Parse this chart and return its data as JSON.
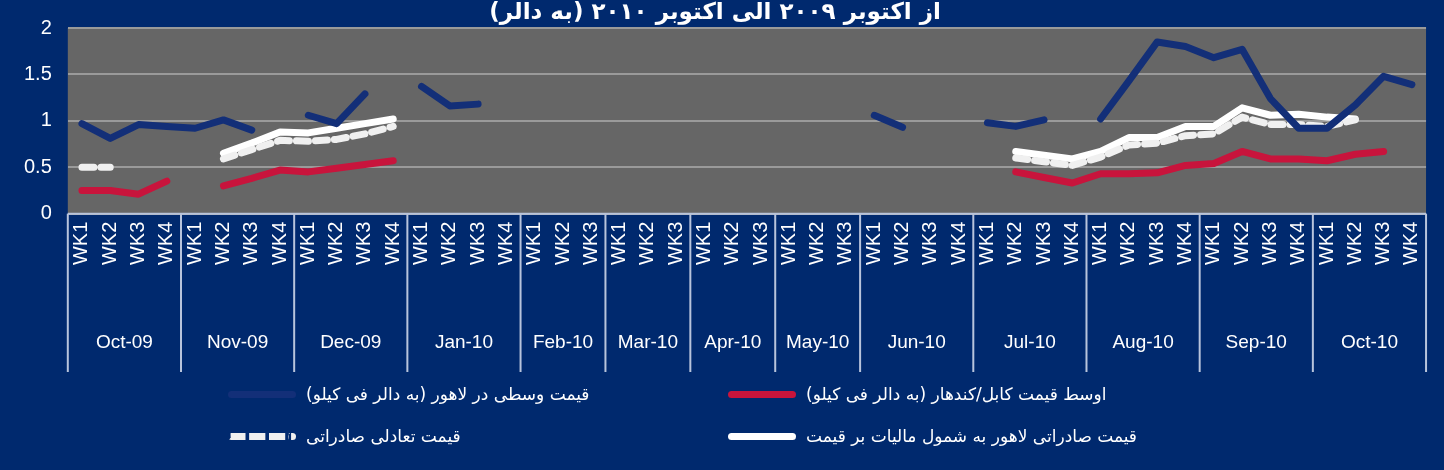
{
  "chart_data": {
    "type": "line",
    "title": "از اکتوبر ۲۰۰۹ الی اکتوبر ۲۰۱۰ (به دالر)",
    "categories": [
      "WK1",
      "WK2",
      "WK3",
      "WK4",
      "WK1",
      "WK2",
      "WK3",
      "WK4",
      "WK1",
      "WK2",
      "WK3",
      "WK4",
      "WK1",
      "WK2",
      "WK3",
      "WK4",
      "WK1",
      "WK2",
      "WK3",
      "WK1",
      "WK2",
      "WK3",
      "WK1",
      "WK2",
      "WK3",
      "WK1",
      "WK2",
      "WK3",
      "WK1",
      "WK2",
      "WK3",
      "WK4",
      "WK1",
      "WK2",
      "WK3",
      "WK4",
      "WK1",
      "WK2",
      "WK3",
      "WK4",
      "WK1",
      "WK2",
      "WK3",
      "WK4",
      "WK1",
      "WK2",
      "WK3",
      "WK4"
    ],
    "annotations": [
      "Oct-09",
      "Nov-09",
      "Dec-09",
      "Jan-10",
      "Feb-10",
      "Mar-10",
      "Apr-10",
      "May-10",
      "Jun-10",
      "Jul-10",
      "Aug-10",
      "Sep-10",
      "Oct-10"
    ],
    "series": [
      {
        "name": "قیمت وسطی در لاهور (به دالر فی کیلو)",
        "color": "#132f78",
        "values": [
          0.97,
          0.81,
          0.96,
          0.94,
          0.92,
          1.01,
          0.9,
          null,
          1.06,
          0.97,
          1.29,
          null,
          1.37,
          1.16,
          1.18,
          null,
          null,
          null,
          null,
          null,
          null,
          null,
          null,
          null,
          null,
          null,
          null,
          null,
          1.06,
          0.93,
          null,
          null,
          0.98,
          0.94,
          1.01,
          null,
          1.02,
          1.43,
          1.85,
          1.8,
          1.68,
          1.77,
          1.24,
          0.92,
          0.92,
          1.17,
          1.48,
          1.39
        ]
      },
      {
        "name": "اوسط قیمت کابل/کندهار (به دالر فی کیلو)",
        "color": "#c8143c",
        "values": [
          0.25,
          0.25,
          0.21,
          0.35,
          null,
          0.3,
          0.38,
          0.47,
          0.45,
          0.49,
          0.53,
          0.57,
          null,
          null,
          null,
          null,
          null,
          null,
          null,
          null,
          null,
          null,
          null,
          null,
          null,
          null,
          null,
          null,
          null,
          null,
          null,
          null,
          null,
          0.45,
          0.39,
          0.33,
          0.43,
          0.43,
          0.44,
          0.52,
          0.54,
          0.67,
          0.59,
          0.59,
          0.57,
          0.64,
          0.67,
          null
        ]
      },
      {
        "name": "قیمت تعادلی صادراتی",
        "color": "#f0f0f0",
        "line_style": "dashed",
        "values": [
          0.5,
          0.5,
          null,
          null,
          null,
          0.59,
          0.69,
          0.79,
          0.78,
          0.8,
          0.86,
          0.94,
          null,
          null,
          null,
          null,
          null,
          null,
          null,
          null,
          null,
          null,
          null,
          null,
          null,
          null,
          null,
          null,
          null,
          null,
          null,
          null,
          null,
          0.6,
          0.56,
          0.52,
          0.61,
          0.74,
          0.76,
          0.84,
          0.86,
          1.04,
          0.96,
          0.96,
          0.94,
          1.01,
          null,
          null
        ]
      },
      {
        "name": "قیمت صادراتی لاهور به شمول مالیات بر قیمت",
        "color": "#ffffff",
        "line_style": "solid",
        "values": [
          null,
          null,
          null,
          null,
          null,
          0.65,
          0.76,
          0.88,
          0.87,
          0.92,
          0.97,
          1.02,
          null,
          null,
          null,
          null,
          null,
          null,
          null,
          null,
          null,
          null,
          null,
          null,
          null,
          null,
          null,
          null,
          null,
          null,
          null,
          null,
          null,
          0.67,
          0.63,
          0.59,
          0.67,
          0.82,
          0.82,
          0.94,
          0.94,
          1.14,
          1.06,
          1.07,
          1.04,
          1.02,
          null,
          null
        ]
      }
    ],
    "ylim": [
      0,
      2
    ],
    "yticks": [
      0,
      0.5,
      1,
      1.5,
      2
    ],
    "grid": "y",
    "legend": "bottom",
    "marker": "none"
  }
}
